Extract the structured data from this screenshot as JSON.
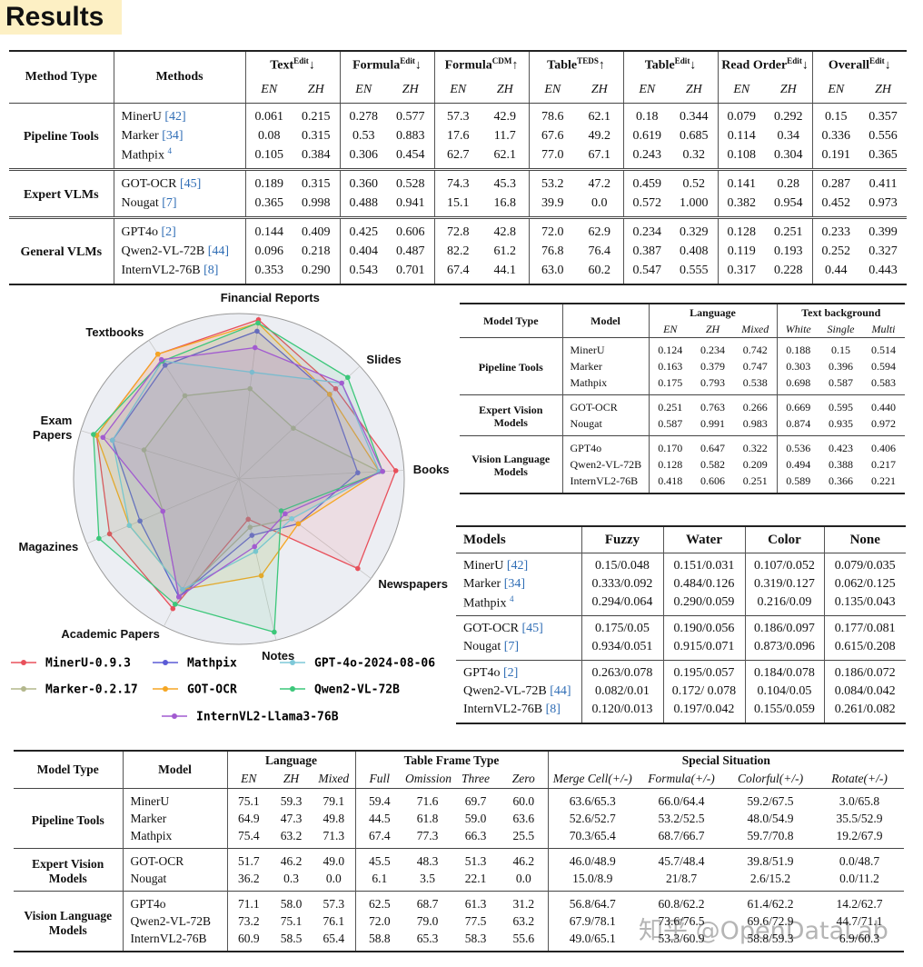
{
  "title": "Results",
  "watermark": "知乎 @OpenDataLab",
  "end_to_end_table": {
    "columns": [
      "Method Type",
      "Methods"
    ],
    "group_headers": [
      {
        "name": "Text",
        "sup": "Edit",
        "arrow": "↓",
        "sub": [
          "EN",
          "ZH"
        ]
      },
      {
        "name": "Formula",
        "sup": "Edit",
        "arrow": "↓",
        "sub": [
          "EN",
          "ZH"
        ]
      },
      {
        "name": "Formula",
        "sup": "CDM",
        "arrow": "↑",
        "sub": [
          "EN",
          "ZH"
        ]
      },
      {
        "name": "Table",
        "sup": "TEDS",
        "arrow": "↑",
        "sub": [
          "EN",
          "ZH"
        ]
      },
      {
        "name": "Table",
        "sup": "Edit",
        "arrow": "↓",
        "sub": [
          "EN",
          "ZH"
        ]
      },
      {
        "name": "Read Order",
        "sup": "Edit",
        "arrow": "↓",
        "sub": [
          "EN",
          "ZH"
        ]
      },
      {
        "name": "Overall",
        "sup": "Edit",
        "arrow": "↓",
        "sub": [
          "EN",
          "ZH"
        ]
      }
    ],
    "groups": [
      {
        "name": "Pipeline Tools",
        "rows": [
          {
            "model": "MinerU",
            "ref": "[42]",
            "values": [
              "0.061",
              "0.215",
              "0.278",
              "0.577",
              "57.3",
              "42.9",
              "78.6",
              "62.1",
              "0.18",
              "0.344",
              "0.079",
              "0.292",
              "0.15",
              "0.357"
            ]
          },
          {
            "model": "Marker",
            "ref": "[34]",
            "values": [
              "0.08",
              "0.315",
              "0.53",
              "0.883",
              "17.6",
              "11.7",
              "67.6",
              "49.2",
              "0.619",
              "0.685",
              "0.114",
              "0.34",
              "0.336",
              "0.556"
            ]
          },
          {
            "model": "Mathpix",
            "note": "4",
            "values": [
              "0.105",
              "0.384",
              "0.306",
              "0.454",
              "62.7",
              "62.1",
              "77.0",
              "67.1",
              "0.243",
              "0.32",
              "0.108",
              "0.304",
              "0.191",
              "0.365"
            ]
          }
        ]
      },
      {
        "name": "Expert VLMs",
        "rows": [
          {
            "model": "GOT-OCR",
            "ref": "[45]",
            "values": [
              "0.189",
              "0.315",
              "0.360",
              "0.528",
              "74.3",
              "45.3",
              "53.2",
              "47.2",
              "0.459",
              "0.52",
              "0.141",
              "0.28",
              "0.287",
              "0.411"
            ]
          },
          {
            "model": "Nougat",
            "ref": "[7]",
            "values": [
              "0.365",
              "0.998",
              "0.488",
              "0.941",
              "15.1",
              "16.8",
              "39.9",
              "0.0",
              "0.572",
              "1.000",
              "0.382",
              "0.954",
              "0.452",
              "0.973"
            ]
          }
        ]
      },
      {
        "name": "General VLMs",
        "rows": [
          {
            "model": "GPT4o",
            "ref": "[2]",
            "values": [
              "0.144",
              "0.409",
              "0.425",
              "0.606",
              "72.8",
              "42.8",
              "72.0",
              "62.9",
              "0.234",
              "0.329",
              "0.128",
              "0.251",
              "0.233",
              "0.399"
            ]
          },
          {
            "model": "Qwen2-VL-72B",
            "ref": "[44]",
            "values": [
              "0.096",
              "0.218",
              "0.404",
              "0.487",
              "82.2",
              "61.2",
              "76.8",
              "76.4",
              "0.387",
              "0.408",
              "0.119",
              "0.193",
              "0.252",
              "0.327"
            ]
          },
          {
            "model": "InternVL2-76B",
            "ref": "[8]",
            "values": [
              "0.353",
              "0.290",
              "0.543",
              "0.701",
              "67.4",
              "44.1",
              "63.0",
              "60.2",
              "0.547",
              "0.555",
              "0.317",
              "0.228",
              "0.44",
              "0.443"
            ]
          }
        ]
      }
    ]
  },
  "chart_data": {
    "type": "radar",
    "categories": [
      "Financial Reports",
      "Slides",
      "Books",
      "Newspapers",
      "Notes",
      "Academic Papers",
      "Magazines",
      "Exam Papers",
      "Textbooks"
    ],
    "rlim": [
      0,
      1
    ],
    "legend": "bottom",
    "series": [
      {
        "name": "MinerU-0.9.3",
        "color": "#e8505b",
        "values": [
          0.97,
          0.8,
          0.95,
          0.9,
          0.25,
          0.88,
          0.85,
          0.9,
          0.9
        ]
      },
      {
        "name": "Marker-0.2.17",
        "color": "#b3b78c",
        "values": [
          0.55,
          0.45,
          0.85,
          0.4,
          0.3,
          0.8,
          0.5,
          0.6,
          0.6
        ]
      },
      {
        "name": "Mathpix",
        "color": "#5b5bd6",
        "values": [
          0.9,
          0.75,
          0.72,
          0.45,
          0.35,
          0.8,
          0.65,
          0.8,
          0.82
        ]
      },
      {
        "name": "GOT-OCR",
        "color": "#f5a623",
        "values": [
          0.95,
          0.75,
          0.85,
          0.45,
          0.6,
          0.75,
          0.72,
          0.9,
          0.9
        ]
      },
      {
        "name": "GPT-4o-2024-08-06",
        "color": "#7ec8d8",
        "values": [
          0.65,
          0.85,
          0.85,
          0.4,
          0.45,
          0.75,
          0.72,
          0.8,
          0.85
        ]
      },
      {
        "name": "Qwen2-VL-72B",
        "color": "#3cc77a",
        "values": [
          0.95,
          0.9,
          0.87,
          0.32,
          0.95,
          0.85,
          0.92,
          0.92,
          0.85
        ]
      },
      {
        "name": "InternVL2-Llama3-76B",
        "color": "#a25bd0",
        "values": [
          0.8,
          0.85,
          0.87,
          0.35,
          0.42,
          0.8,
          0.5,
          0.86,
          0.86
        ]
      }
    ]
  },
  "text_ocr_table": {
    "columns": [
      "Model Type",
      "Model"
    ],
    "group_headers": [
      {
        "name": "Language",
        "sub": [
          "EN",
          "ZH",
          "Mixed"
        ]
      },
      {
        "name": "Text background",
        "sub": [
          "White",
          "Single",
          "Multi"
        ]
      }
    ],
    "groups": [
      {
        "name": "Pipeline Tools",
        "rows": [
          {
            "model": "MinerU",
            "values": [
              "0.124",
              "0.234",
              "0.742",
              "0.188",
              "0.15",
              "0.514"
            ]
          },
          {
            "model": "Marker",
            "values": [
              "0.163",
              "0.379",
              "0.747",
              "0.303",
              "0.396",
              "0.594"
            ]
          },
          {
            "model": "Mathpix",
            "values": [
              "0.175",
              "0.793",
              "0.538",
              "0.698",
              "0.587",
              "0.583"
            ]
          }
        ]
      },
      {
        "name": "Expert Vision Models",
        "rows": [
          {
            "model": "GOT-OCR",
            "values": [
              "0.251",
              "0.763",
              "0.266",
              "0.669",
              "0.595",
              "0.440"
            ]
          },
          {
            "model": "Nougat",
            "values": [
              "0.587",
              "0.991",
              "0.983",
              "0.874",
              "0.935",
              "0.972"
            ]
          }
        ]
      },
      {
        "name": "Vision Language Models",
        "rows": [
          {
            "model": "GPT4o",
            "values": [
              "0.170",
              "0.647",
              "0.322",
              "0.536",
              "0.423",
              "0.406"
            ]
          },
          {
            "model": "Qwen2-VL-72B",
            "values": [
              "0.128",
              "0.582",
              "0.209",
              "0.494",
              "0.388",
              "0.217"
            ]
          },
          {
            "model": "InternVL2-76B",
            "values": [
              "0.418",
              "0.606",
              "0.251",
              "0.589",
              "0.366",
              "0.221"
            ]
          }
        ]
      }
    ]
  },
  "text_noise_table": {
    "columns": [
      "Models",
      "Fuzzy",
      "Water",
      "Color",
      "None"
    ],
    "groups": [
      {
        "rows": [
          {
            "model": "MinerU",
            "ref": "[42]",
            "values": [
              "0.15/0.048",
              "0.151/0.031",
              "0.107/0.052",
              "0.079/0.035"
            ]
          },
          {
            "model": "Marker",
            "ref": "[34]",
            "values": [
              "0.333/0.092",
              "0.484/0.126",
              "0.319/0.127",
              "0.062/0.125"
            ]
          },
          {
            "model": "Mathpix",
            "note": "4",
            "values": [
              "0.294/0.064",
              "0.290/0.059",
              "0.216/0.09",
              "0.135/0.043"
            ]
          }
        ]
      },
      {
        "rows": [
          {
            "model": "GOT-OCR",
            "ref": "[45]",
            "values": [
              "0.175/0.05",
              "0.190/0.056",
              "0.186/0.097",
              "0.177/0.081"
            ]
          },
          {
            "model": "Nougat",
            "ref": "[7]",
            "values": [
              "0.934/0.051",
              "0.915/0.071",
              "0.873/0.096",
              "0.615/0.208"
            ]
          }
        ]
      },
      {
        "rows": [
          {
            "model": "GPT4o",
            "ref": "[2]",
            "values": [
              "0.263/0.078",
              "0.195/0.057",
              "0.184/0.078",
              "0.186/0.072"
            ]
          },
          {
            "model": "Qwen2-VL-72B",
            "ref": "[44]",
            "values": [
              "0.082/0.01",
              "0.172/ 0.078",
              "0.104/0.05",
              "0.084/0.042"
            ]
          },
          {
            "model": "InternVL2-76B",
            "ref": "[8]",
            "values": [
              "0.120/0.013",
              "0.197/0.042",
              "0.155/0.059",
              "0.261/0.082"
            ]
          }
        ]
      }
    ]
  },
  "table_recognition_table": {
    "columns": [
      "Model Type",
      "Model"
    ],
    "group_headers": [
      {
        "name": "Language",
        "sub": [
          "EN",
          "ZH",
          "Mixed"
        ]
      },
      {
        "name": "Table Frame Type",
        "sub": [
          "Full",
          "Omission",
          "Three",
          "Zero"
        ]
      },
      {
        "name": "Special Situation",
        "sub": [
          "Merge Cell(+/-)",
          "Formula(+/-)",
          "Colorful(+/-)",
          "Rotate(+/-)"
        ]
      }
    ],
    "groups": [
      {
        "name": "Pipeline Tools",
        "rows": [
          {
            "model": "MinerU",
            "values": [
              "75.1",
              "59.3",
              "79.1",
              "59.4",
              "71.6",
              "69.7",
              "60.0",
              "63.6/65.3",
              "66.0/64.4",
              "59.2/67.5",
              "3.0/65.8"
            ]
          },
          {
            "model": "Marker",
            "values": [
              "64.9",
              "47.3",
              "49.8",
              "44.5",
              "61.8",
              "59.0",
              "63.6",
              "52.6/52.7",
              "53.2/52.5",
              "48.0/54.9",
              "35.5/52.9"
            ]
          },
          {
            "model": "Mathpix",
            "values": [
              "75.4",
              "63.2",
              "71.3",
              "67.4",
              "77.3",
              "66.3",
              "25.5",
              "70.3/65.4",
              "68.7/66.7",
              "59.7/70.8",
              "19.2/67.9"
            ]
          }
        ]
      },
      {
        "name": "Expert Vision Models",
        "rows": [
          {
            "model": "GOT-OCR",
            "values": [
              "51.7",
              "46.2",
              "49.0",
              "45.5",
              "48.3",
              "51.3",
              "46.2",
              "46.0/48.9",
              "45.7/48.4",
              "39.8/51.9",
              "0.0/48.7"
            ]
          },
          {
            "model": "Nougat",
            "values": [
              "36.2",
              "0.3",
              "0.0",
              "6.1",
              "3.5",
              "22.1",
              "0.0",
              "15.0/8.9",
              "21/8.7",
              "2.6/15.2",
              "0.0/11.2"
            ]
          }
        ]
      },
      {
        "name": "Vision Language Models",
        "rows": [
          {
            "model": "GPT4o",
            "values": [
              "71.1",
              "58.0",
              "57.3",
              "62.5",
              "68.7",
              "61.3",
              "31.2",
              "56.8/64.7",
              "60.8/62.2",
              "61.4/62.2",
              "14.2/62.7"
            ]
          },
          {
            "model": "Qwen2-VL-72B",
            "values": [
              "73.2",
              "75.1",
              "76.1",
              "72.0",
              "79.0",
              "77.5",
              "63.2",
              "67.9/78.1",
              "73.6/76.5",
              "69.6/72.9",
              "44.7/71.1"
            ]
          },
          {
            "model": "InternVL2-76B",
            "values": [
              "60.9",
              "58.5",
              "65.4",
              "58.8",
              "65.3",
              "58.3",
              "55.6",
              "49.0/65.1",
              "53.3/60.9",
              "58.8/59.3",
              "6.9/60.3"
            ]
          }
        ]
      }
    ]
  }
}
